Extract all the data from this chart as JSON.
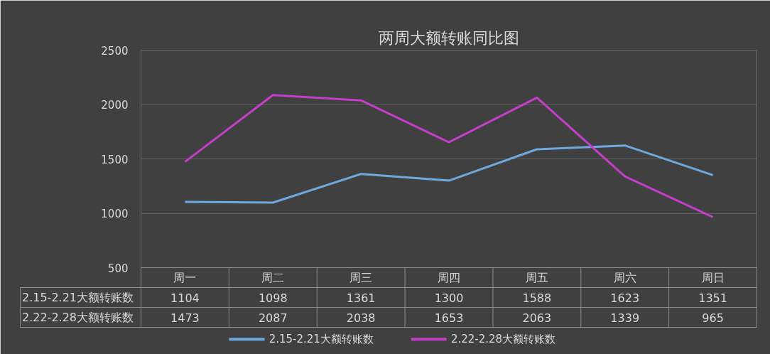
{
  "chart_data": {
    "type": "line",
    "title": "两周大额转账同比图",
    "categories": [
      "周一",
      "周二",
      "周三",
      "周四",
      "周五",
      "周六",
      "周日"
    ],
    "series": [
      {
        "name": "2.15-2.21大额转账数",
        "color": "#6fa8dc",
        "values": [
          1104,
          1098,
          1361,
          1300,
          1588,
          1623,
          1351
        ]
      },
      {
        "name": "2.22-2.28大额转账数",
        "color": "#c43fc9",
        "values": [
          1473,
          2087,
          2038,
          1653,
          2063,
          1339,
          965
        ]
      }
    ],
    "ylim": [
      500,
      2500
    ],
    "yticks": [
      500,
      1000,
      1500,
      2000,
      2500
    ],
    "grid": "y",
    "legend": "bottom",
    "data_labels": true,
    "tick_labels": "y",
    "line_style": "solid",
    "marker": "none"
  }
}
